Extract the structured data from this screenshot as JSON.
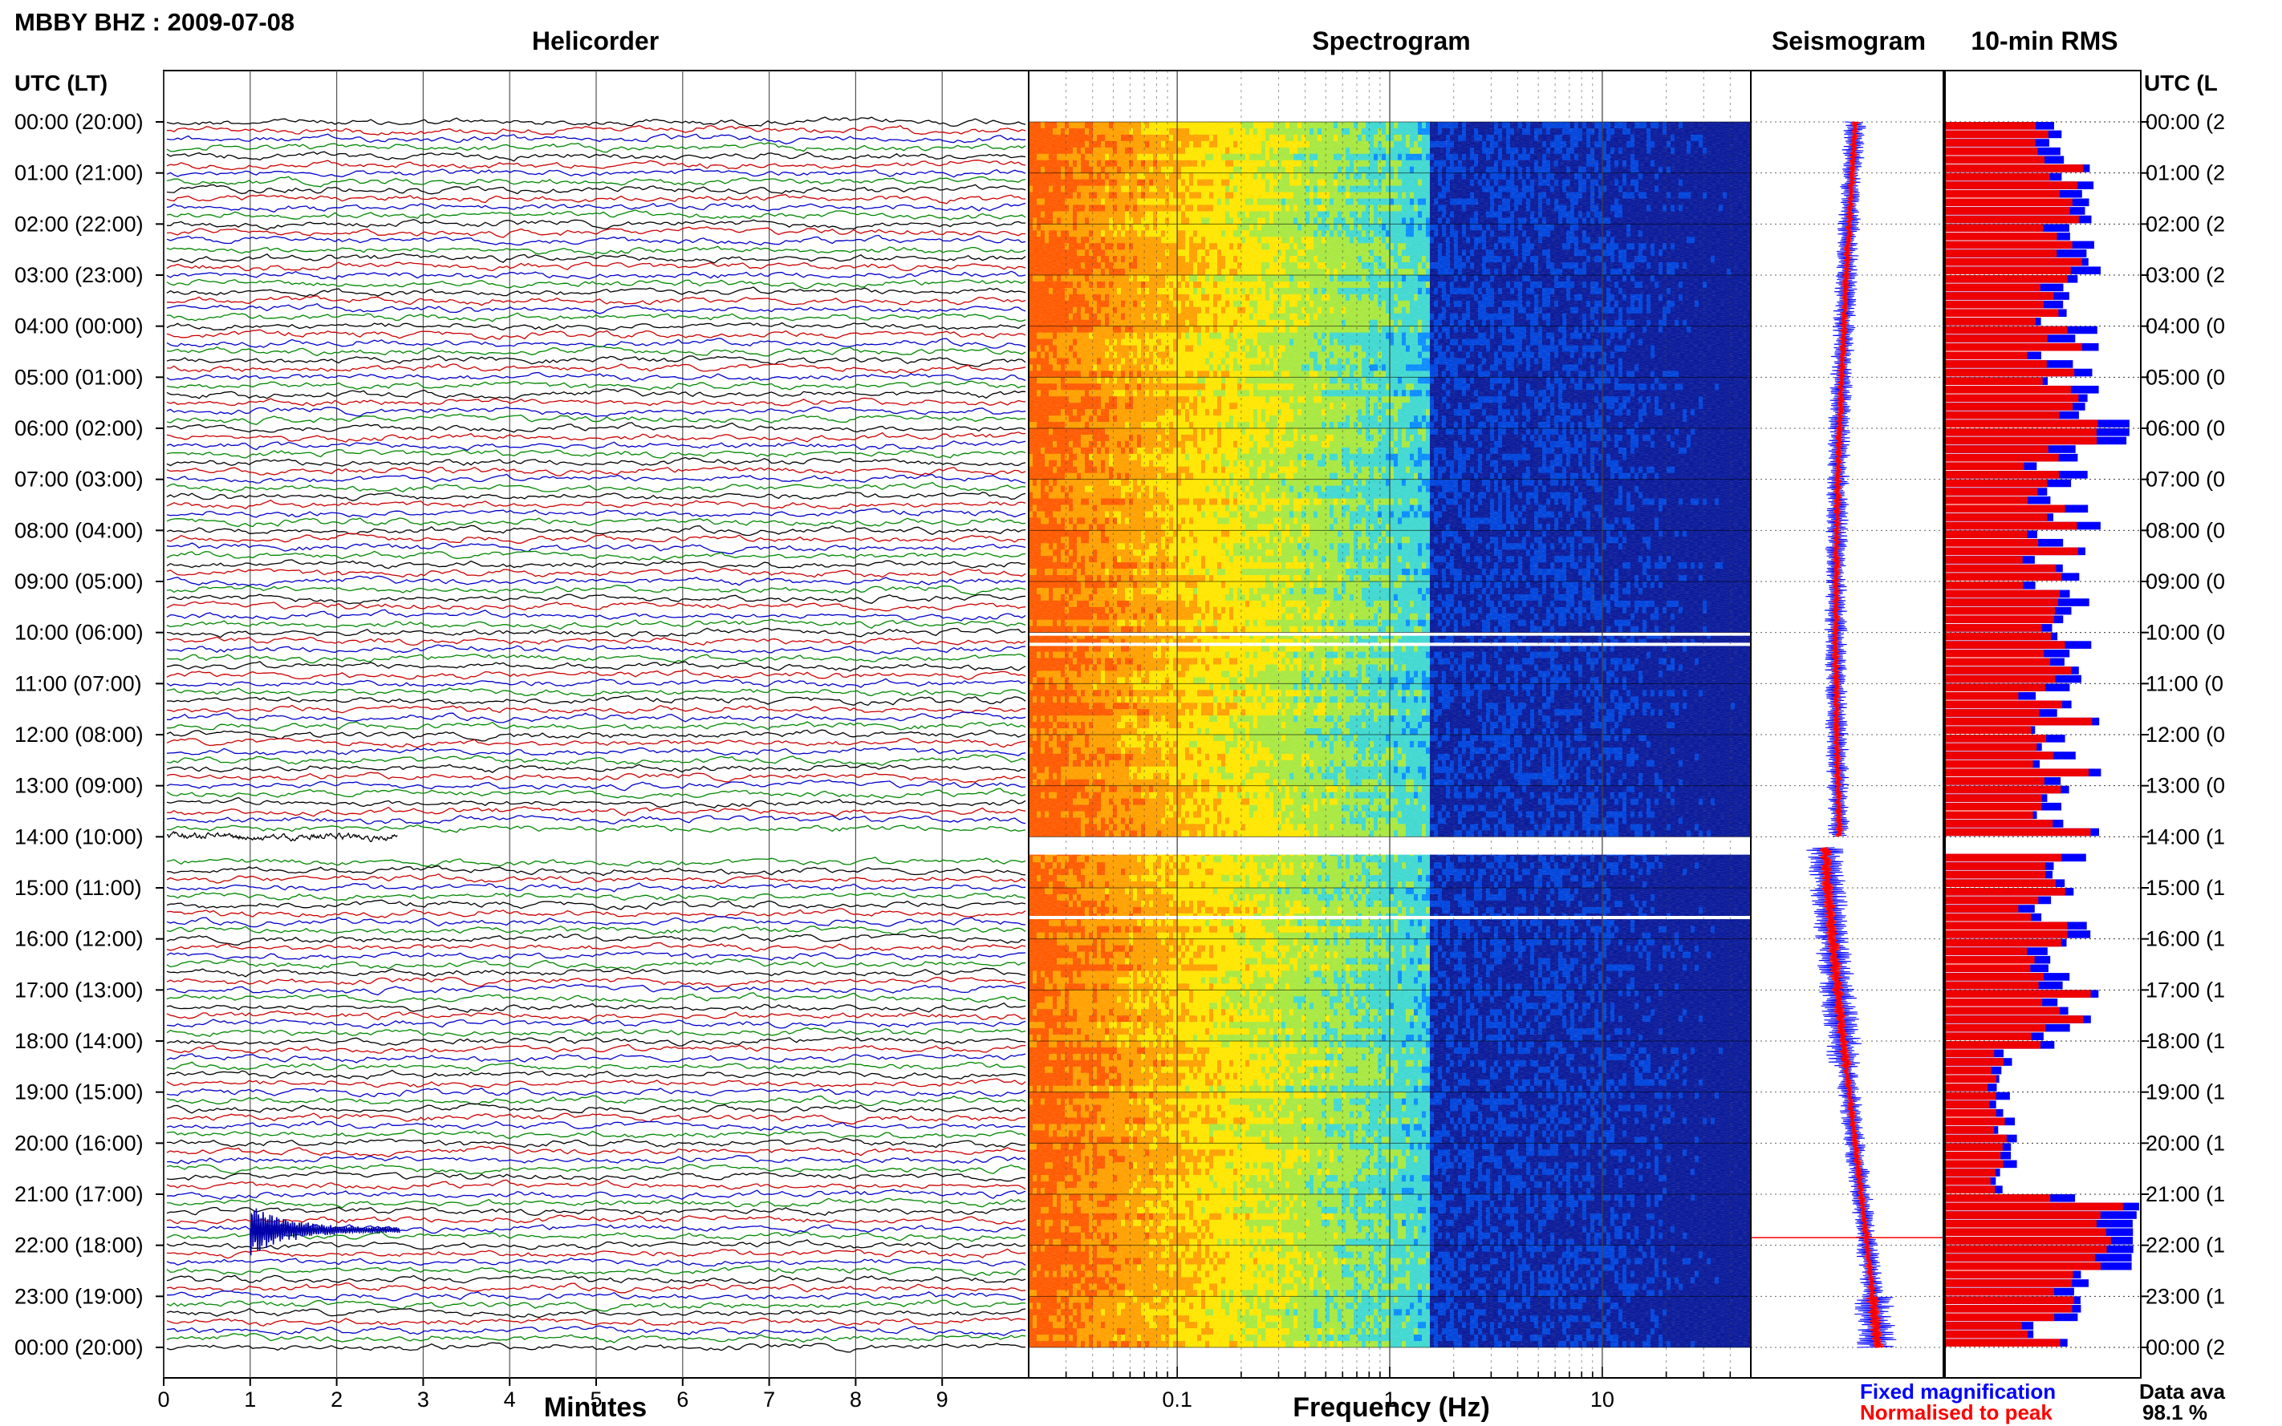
{
  "header": {
    "station_title": "MBBY BHZ : 2009-07-08",
    "utc_lt_label_left": "UTC (LT)",
    "utc_lt_label_right": "UTC (L"
  },
  "panels": {
    "helicorder": "Helicorder",
    "spectrogram": "Spectrogram",
    "seismogram": "Seismogram",
    "rms": "10-min RMS"
  },
  "chart_data": {
    "type": "heatmap",
    "rows": [
      {
        "left": "00:00 (20:00)",
        "right": "00:00 (2"
      },
      {
        "left": "01:00 (21:00)",
        "right": "01:00 (2"
      },
      {
        "left": "02:00 (22:00)",
        "right": "02:00 (2"
      },
      {
        "left": "03:00 (23:00)",
        "right": "03:00 (2"
      },
      {
        "left": "04:00 (00:00)",
        "right": "04:00 (0"
      },
      {
        "left": "05:00 (01:00)",
        "right": "05:00 (0"
      },
      {
        "left": "06:00 (02:00)",
        "right": "06:00 (0"
      },
      {
        "left": "07:00 (03:00)",
        "right": "07:00 (0"
      },
      {
        "left": "08:00 (04:00)",
        "right": "08:00 (0"
      },
      {
        "left": "09:00 (05:00)",
        "right": "09:00 (0"
      },
      {
        "left": "10:00 (06:00)",
        "right": "10:00 (0"
      },
      {
        "left": "11:00 (07:00)",
        "right": "11:00 (0"
      },
      {
        "left": "12:00 (08:00)",
        "right": "12:00 (0"
      },
      {
        "left": "13:00 (09:00)",
        "right": "13:00 (0"
      },
      {
        "left": "14:00 (10:00)",
        "right": "14:00 (1"
      },
      {
        "left": "15:00 (11:00)",
        "right": "15:00 (1"
      },
      {
        "left": "16:00 (12:00)",
        "right": "16:00 (1"
      },
      {
        "left": "17:00 (13:00)",
        "right": "17:00 (1"
      },
      {
        "left": "18:00 (14:00)",
        "right": "18:00 (1"
      },
      {
        "left": "19:00 (15:00)",
        "right": "19:00 (1"
      },
      {
        "left": "20:00 (16:00)",
        "right": "20:00 (1"
      },
      {
        "left": "21:00 (17:00)",
        "right": "21:00 (1"
      },
      {
        "left": "22:00 (18:00)",
        "right": "22:00 (1"
      },
      {
        "left": "23:00 (19:00)",
        "right": "23:00 (1"
      },
      {
        "left": "00:00 (20:00)",
        "right": "00:00 (2"
      }
    ],
    "helicorder": {
      "xlabel": "Minutes",
      "x_ticks": [
        "0",
        "1",
        "2",
        "3",
        "4",
        "5",
        "6",
        "7",
        "8",
        "9"
      ],
      "xlim": [
        0,
        10
      ],
      "trace_colors": [
        "#000000",
        "#cc0000",
        "#0000cc",
        "#008800"
      ],
      "data_gap_hours": [
        14.0,
        14.2
      ],
      "event_hour": 21.7,
      "event_minute": 1.0
    },
    "spectrogram": {
      "xlabel": "Frequency (Hz)",
      "x_ticks": [
        {
          "f": 0.1,
          "label": "0.1"
        },
        {
          "f": 1,
          "label": "1"
        },
        {
          "f": 10,
          "label": "10"
        }
      ],
      "xlim": [
        0.02,
        50
      ],
      "log_x": true,
      "colormap": [
        "#ff5a00",
        "#ffa000",
        "#ffe600",
        "#a8e840",
        "#40d8d0",
        "#0a8cff",
        "#0044dd",
        "#0a1a9a"
      ],
      "gap_hours": [
        10.0,
        10.2,
        14.0,
        14.35,
        15.55
      ]
    },
    "seismogram": {
      "gap_hours": [
        14.0,
        14.2
      ]
    },
    "rms": {
      "legend": [
        "Fixed magnification",
        "Normalised to peak"
      ],
      "legend_colors": [
        "#0000ff",
        "#ff0000"
      ],
      "gap_hours": [
        14.0,
        14.2
      ]
    },
    "availability": {
      "label": "Data ava",
      "value": "98.1 %"
    }
  }
}
